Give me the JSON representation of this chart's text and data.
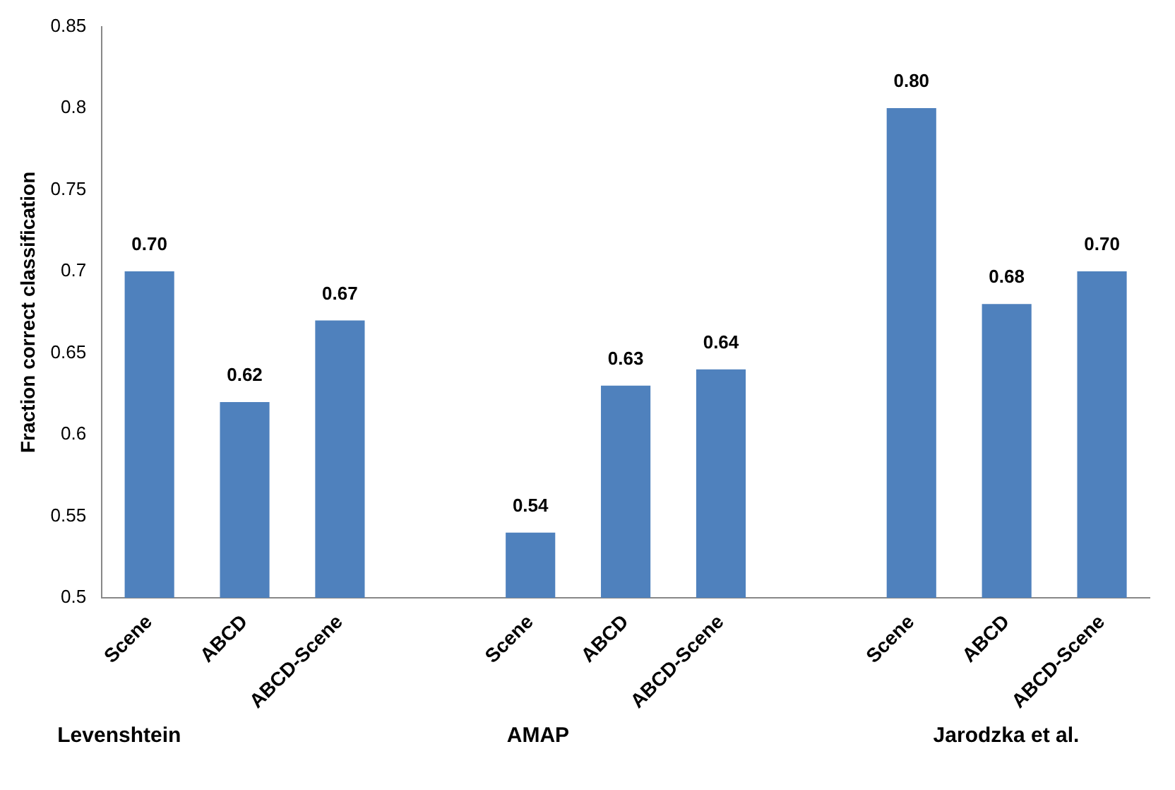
{
  "chart_data": {
    "type": "bar",
    "ylabel": "Fraction correct classification",
    "categories": [
      "Scene",
      "ABCD",
      "ABCD-Scene",
      null,
      "Scene",
      "ABCD",
      "ABCD-Scene",
      null,
      "Scene",
      "ABCD",
      "ABCD-Scene"
    ],
    "values": [
      0.7,
      0.62,
      0.67,
      null,
      0.54,
      0.63,
      0.64,
      null,
      0.8,
      0.68,
      0.7
    ],
    "value_labels": [
      "0.70",
      "0.62",
      "0.67",
      null,
      "0.54",
      "0.63",
      "0.64",
      null,
      "0.80",
      "0.68",
      "0.70"
    ],
    "color": "#4f81bd",
    "ylim": [
      0.5,
      0.85
    ],
    "yticks": [
      0.5,
      0.55,
      0.6,
      0.65,
      0.7,
      0.75,
      0.8,
      0.85
    ],
    "grid": false,
    "legend": false,
    "annotations": [
      "Levenshtein",
      "AMAP",
      "Jarodzka et al."
    ]
  }
}
